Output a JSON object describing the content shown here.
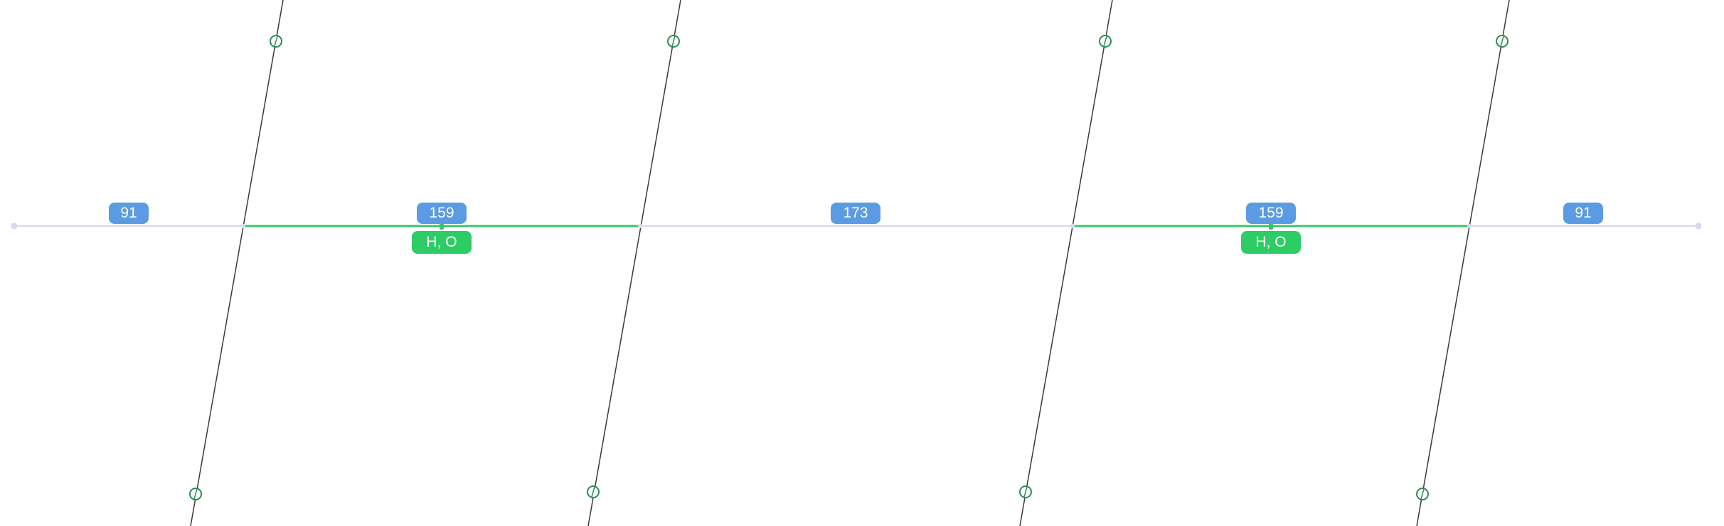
{
  "colors": {
    "background": "#ffffff",
    "baseline": "#d7d9ec",
    "highlight": "#3cc36a",
    "measure_badge": "#5B9BE3",
    "tag_badge": "#2ECC65",
    "guide_line": "#3a3a3a",
    "handle": "#2e8b57"
  },
  "measurements": [
    "91",
    "159",
    "173",
    "159",
    "91"
  ],
  "tags": [
    "H, O",
    "H, O"
  ]
}
